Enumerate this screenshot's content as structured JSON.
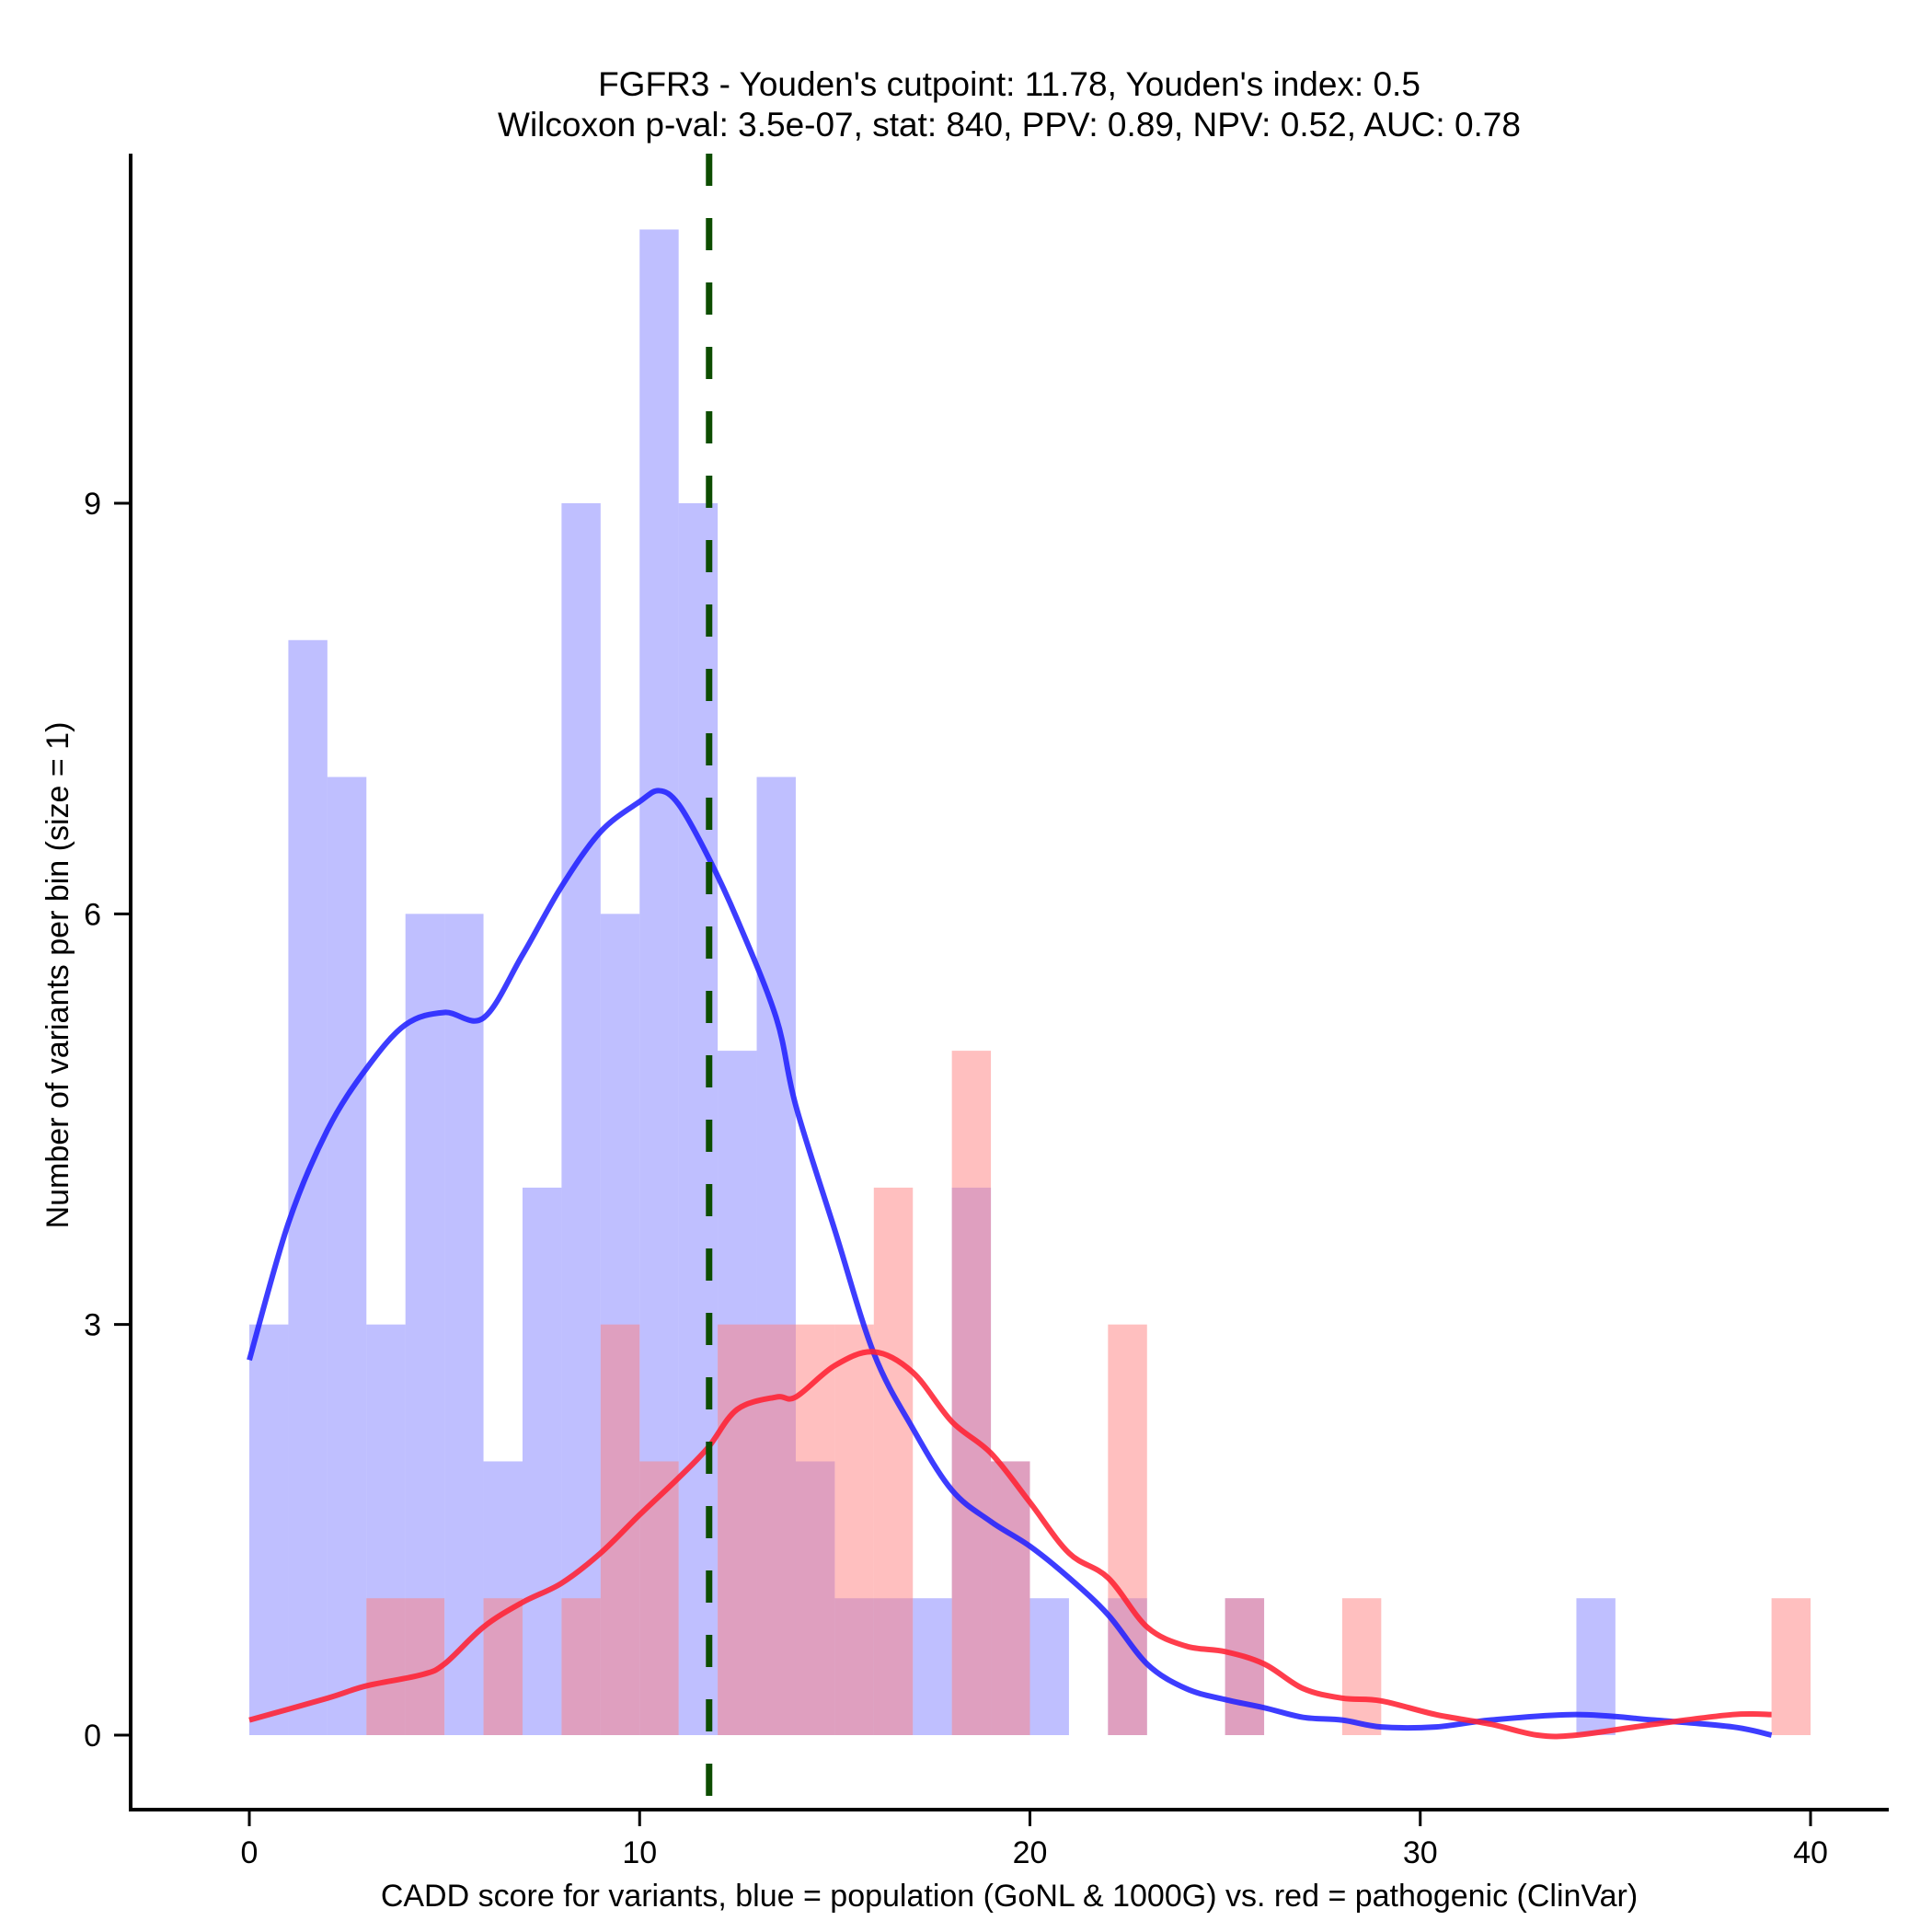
{
  "chart_data": {
    "type": "bar",
    "title_lines": [
      "FGFR3 - Youden's cutpoint: 11.78, Youden's index: 0.5",
      "Wilcoxon p-val: 3.5e-07, stat: 840, PPV: 0.89, NPV: 0.52, AUC: 0.78"
    ],
    "xlabel": "CADD score for variants, blue = population (GoNL & 1000G) vs. red = pathogenic (ClinVar)",
    "ylabel": "Number of variants per bin (size = 1)",
    "xlim": [
      -3.2,
      42
    ],
    "ylim": [
      -0.55,
      11.7
    ],
    "xticks": [
      0,
      10,
      20,
      30,
      40
    ],
    "yticks": [
      0,
      3,
      6,
      9
    ],
    "bin_size": 1,
    "grid": false,
    "legend": "none",
    "cutpoint": 11.78,
    "colors": {
      "population_bar": "#8080ff",
      "pathogenic_bar": "#ff8080",
      "population_line": "#2222ff",
      "pathogenic_line": "#ff2233",
      "cutpoint_line": "#0d4d00",
      "axis": "#000000"
    },
    "series": [
      {
        "name": "population (GoNL & 1000G)",
        "kind": "histogram",
        "bins": [
          {
            "x": 0,
            "count": 3
          },
          {
            "x": 1,
            "count": 8
          },
          {
            "x": 2,
            "count": 7
          },
          {
            "x": 3,
            "count": 3
          },
          {
            "x": 4,
            "count": 6
          },
          {
            "x": 5,
            "count": 6
          },
          {
            "x": 6,
            "count": 2
          },
          {
            "x": 7,
            "count": 4
          },
          {
            "x": 8,
            "count": 9
          },
          {
            "x": 9,
            "count": 6
          },
          {
            "x": 10,
            "count": 11
          },
          {
            "x": 11,
            "count": 9
          },
          {
            "x": 12,
            "count": 5
          },
          {
            "x": 13,
            "count": 7
          },
          {
            "x": 14,
            "count": 2
          },
          {
            "x": 15,
            "count": 1
          },
          {
            "x": 16,
            "count": 1
          },
          {
            "x": 17,
            "count": 1
          },
          {
            "x": 18,
            "count": 4
          },
          {
            "x": 19,
            "count": 2
          },
          {
            "x": 20,
            "count": 1
          },
          {
            "x": 22,
            "count": 1
          },
          {
            "x": 25,
            "count": 1
          },
          {
            "x": 34,
            "count": 1
          }
        ]
      },
      {
        "name": "pathogenic (ClinVar)",
        "kind": "histogram",
        "bins": [
          {
            "x": 3,
            "count": 1
          },
          {
            "x": 4,
            "count": 1
          },
          {
            "x": 6,
            "count": 1
          },
          {
            "x": 8,
            "count": 1
          },
          {
            "x": 9,
            "count": 3
          },
          {
            "x": 10,
            "count": 2
          },
          {
            "x": 12,
            "count": 3
          },
          {
            "x": 13,
            "count": 3
          },
          {
            "x": 14,
            "count": 3
          },
          {
            "x": 15,
            "count": 3
          },
          {
            "x": 16,
            "count": 4
          },
          {
            "x": 18,
            "count": 5
          },
          {
            "x": 19,
            "count": 2
          },
          {
            "x": 22,
            "count": 3
          },
          {
            "x": 25,
            "count": 1
          },
          {
            "x": 28,
            "count": 1
          },
          {
            "x": 39,
            "count": 1
          }
        ]
      },
      {
        "name": "population density",
        "kind": "line",
        "x": [
          0,
          1,
          2,
          3,
          4,
          5,
          6,
          7,
          8,
          9,
          10,
          10.5,
          11,
          11.75,
          12.5,
          13.5,
          14,
          15,
          16,
          17,
          18,
          19,
          20,
          21,
          22,
          23,
          24,
          25,
          26,
          27,
          28,
          29,
          30.4,
          31.8,
          34,
          36,
          38,
          39
        ],
        "y": [
          2.74,
          3.74,
          4.42,
          4.87,
          5.19,
          5.28,
          5.24,
          5.7,
          6.2,
          6.6,
          6.82,
          6.9,
          6.8,
          6.42,
          5.96,
          5.24,
          4.6,
          3.69,
          2.79,
          2.24,
          1.79,
          1.56,
          1.38,
          1.15,
          0.88,
          0.52,
          0.34,
          0.26,
          0.2,
          0.13,
          0.11,
          0.06,
          0.06,
          0.11,
          0.15,
          0.11,
          0.06,
          0.0
        ]
      },
      {
        "name": "pathogenic density",
        "kind": "line",
        "x": [
          0,
          2,
          3,
          4.4,
          5,
          6,
          7,
          8,
          9,
          10,
          11,
          11.75,
          12.5,
          13.5,
          14,
          15,
          16,
          17,
          18,
          19,
          20,
          21,
          22,
          23,
          24,
          25,
          26,
          27,
          28,
          29,
          30.4,
          31.8,
          33,
          34,
          36,
          38,
          39
        ],
        "y": [
          0.11,
          0.27,
          0.36,
          0.44,
          0.52,
          0.79,
          0.97,
          1.11,
          1.33,
          1.61,
          1.88,
          2.1,
          2.38,
          2.47,
          2.47,
          2.7,
          2.8,
          2.65,
          2.29,
          2.06,
          1.7,
          1.33,
          1.15,
          0.79,
          0.65,
          0.61,
          0.52,
          0.34,
          0.27,
          0.25,
          0.15,
          0.08,
          0.0,
          0.0,
          0.08,
          0.15,
          0.15
        ]
      }
    ]
  }
}
